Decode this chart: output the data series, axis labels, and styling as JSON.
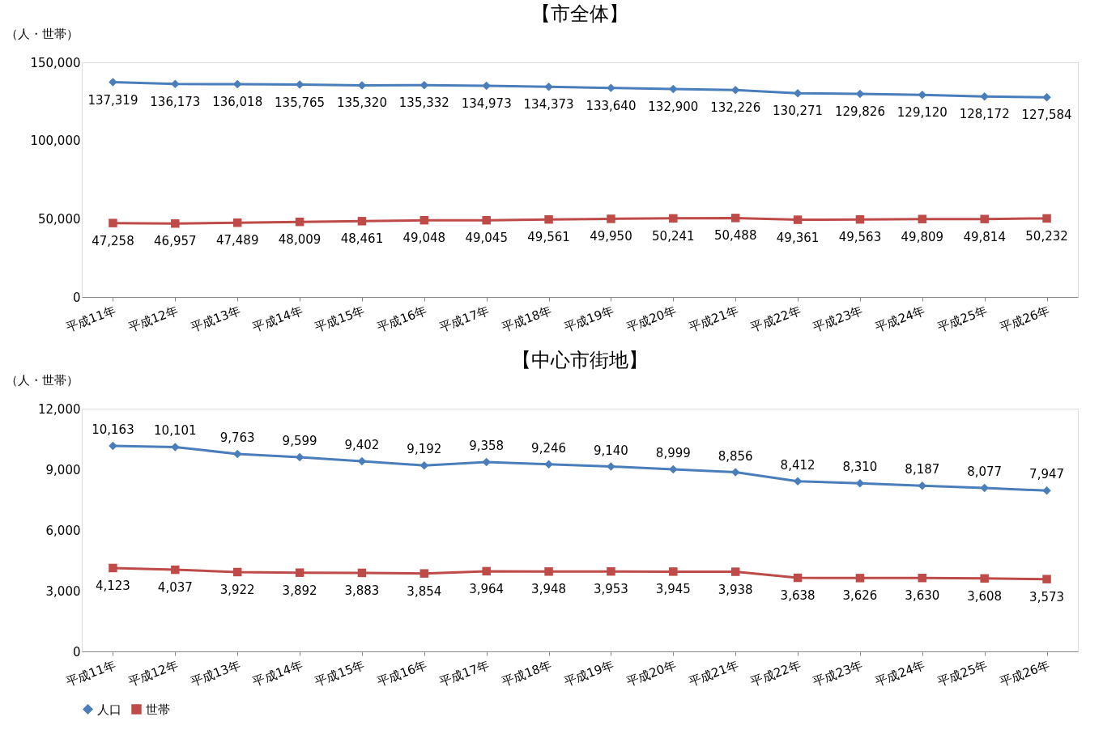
{
  "chart_data": [
    {
      "type": "line",
      "title": "【市全体】",
      "ylabel": "（人・世帯）",
      "categories": [
        "平成11年",
        "平成12年",
        "平成13年",
        "平成14年",
        "平成15年",
        "平成16年",
        "平成17年",
        "平成18年",
        "平成19年",
        "平成20年",
        "平成21年",
        "平成22年",
        "平成23年",
        "平成24年",
        "平成25年",
        "平成26年"
      ],
      "series": [
        {
          "color": "#4a7ebb",
          "marker": "diamond",
          "values": [
            137319,
            136173,
            136018,
            135765,
            135320,
            135332,
            134973,
            134373,
            133640,
            132900,
            132226,
            130271,
            129826,
            129120,
            128172,
            127584
          ],
          "value_labels": [
            "137,319",
            "136,173",
            "136,018",
            "135,765",
            "135,320",
            "135,332",
            "134,973",
            "134,373",
            "133,640",
            "132,900",
            "132,226",
            "130,271",
            "129,826",
            "129,120",
            "128,172",
            "127,584"
          ]
        },
        {
          "color": "#be4b48",
          "marker": "square",
          "values": [
            47258,
            46957,
            47489,
            48009,
            48461,
            49048,
            49045,
            49561,
            49950,
            50241,
            50488,
            49361,
            49563,
            49809,
            49814,
            50232
          ],
          "value_labels": [
            "47,258",
            "46,957",
            "47,489",
            "48,009",
            "48,461",
            "49,048",
            "49,045",
            "49,561",
            "49,950",
            "50,241",
            "50,488",
            "49,361",
            "49,563",
            "49,809",
            "49,814",
            "50,232"
          ]
        }
      ],
      "ylim": [
        0,
        150000
      ],
      "yticks": [
        {
          "value": 0,
          "label": "0"
        },
        {
          "value": 50000,
          "label": "50,000"
        },
        {
          "value": 100000,
          "label": "100,000"
        },
        {
          "value": 150000,
          "label": "150,000"
        }
      ],
      "grid": false,
      "line_style": "solid"
    },
    {
      "type": "line",
      "title": "【中心市街地】",
      "ylabel": "（人・世帯）",
      "categories": [
        "平成11年",
        "平成12年",
        "平成13年",
        "平成14年",
        "平成15年",
        "平成16年",
        "平成17年",
        "平成18年",
        "平成19年",
        "平成20年",
        "平成21年",
        "平成22年",
        "平成23年",
        "平成24年",
        "平成25年",
        "平成26年"
      ],
      "series": [
        {
          "name": "人口",
          "color": "#4a7ebb",
          "marker": "diamond",
          "values": [
            10163,
            10101,
            9763,
            9599,
            9402,
            9192,
            9358,
            9246,
            9140,
            8999,
            8856,
            8412,
            8310,
            8187,
            8077,
            7947
          ],
          "value_labels": [
            "10,163",
            "10,101",
            "9,763",
            "9,599",
            "9,402",
            "9,192",
            "9,358",
            "9,246",
            "9,140",
            "8,999",
            "8,856",
            "8,412",
            "8,310",
            "8,187",
            "8,077",
            "7,947"
          ]
        },
        {
          "name": "世帯",
          "color": "#be4b48",
          "marker": "square",
          "values": [
            4123,
            4037,
            3922,
            3892,
            3883,
            3854,
            3964,
            3948,
            3953,
            3945,
            3938,
            3638,
            3626,
            3630,
            3608,
            3573
          ],
          "value_labels": [
            "4,123",
            "4,037",
            "3,922",
            "3,892",
            "3,883",
            "3,854",
            "3,964",
            "3,948",
            "3,953",
            "3,945",
            "3,938",
            "3,638",
            "3,626",
            "3,630",
            "3,608",
            "3,573"
          ]
        }
      ],
      "ylim": [
        0,
        12000
      ],
      "yticks": [
        {
          "value": 0,
          "label": "0"
        },
        {
          "value": 3000,
          "label": "3,000"
        },
        {
          "value": 6000,
          "label": "6,000"
        },
        {
          "value": 9000,
          "label": "9,000"
        },
        {
          "value": 12000,
          "label": "12,000"
        }
      ],
      "grid": false,
      "legend": "bottom",
      "line_style": "solid"
    }
  ]
}
